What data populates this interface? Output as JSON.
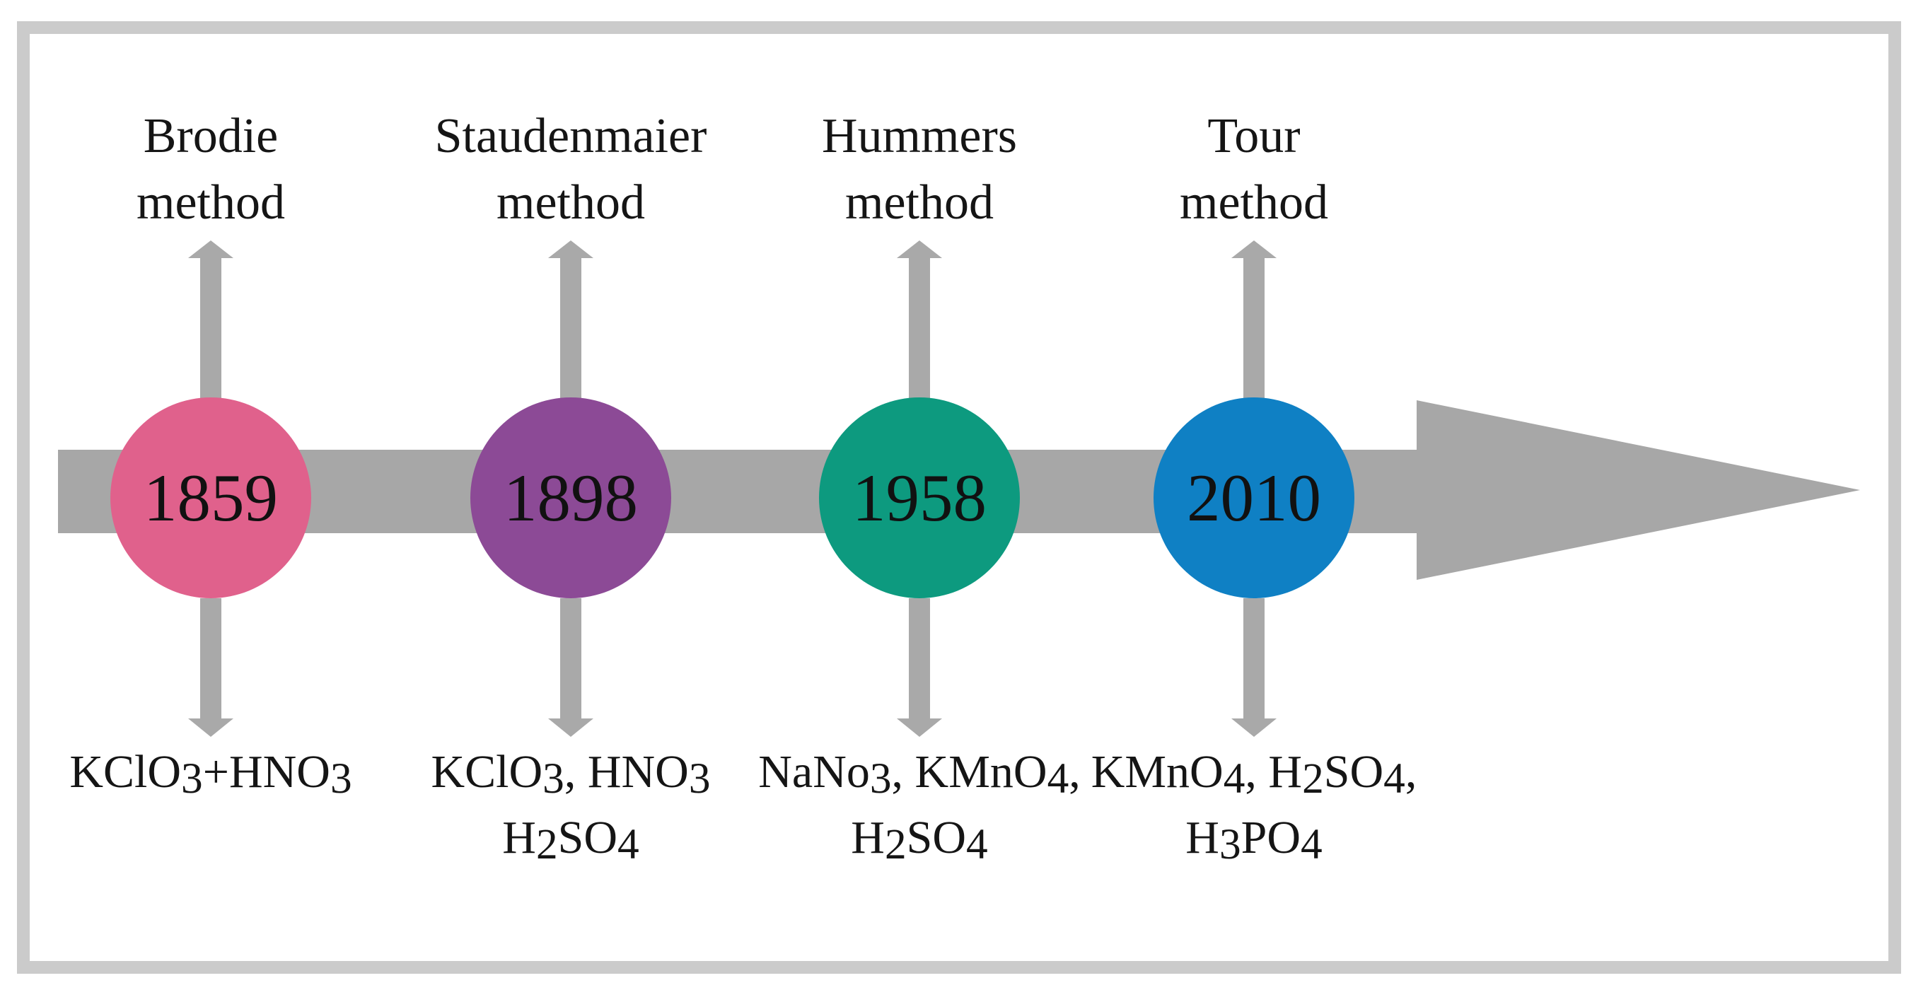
{
  "diagram": {
    "type": "timeline",
    "direction": "left-to-right",
    "colors": {
      "timeline_gray": "#a7a7a7",
      "stub_arrow_gray": "#a9a9a9",
      "frame_gray": "#cbcbcb",
      "text_black": "#151515"
    }
  },
  "methods": [
    {
      "name": "Brodie method",
      "label_lines": [
        "Brodie",
        "method"
      ],
      "year": "1859",
      "circle_color": "#e0618c",
      "chemicals": [
        "KClO3+HNO3"
      ]
    },
    {
      "name": "Staudenmaier method",
      "label_lines": [
        "Staudenmaier",
        "method"
      ],
      "year": "1898",
      "circle_color": "#8c4a96",
      "chemicals": [
        "KClO3, HNO3",
        "H2SO4"
      ]
    },
    {
      "name": "Hummers method",
      "label_lines": [
        "Hummers",
        "method"
      ],
      "year": "1958",
      "circle_color": "#0d9a7f",
      "chemicals": [
        "NaNo3, KMnO4,",
        "H2SO4"
      ]
    },
    {
      "name": "Tour method",
      "label_lines": [
        "Tour",
        "method"
      ],
      "year": "2010",
      "circle_color": "#0f80c4",
      "chemicals": [
        "KMnO4, H2SO4,",
        "H3PO4"
      ]
    }
  ]
}
